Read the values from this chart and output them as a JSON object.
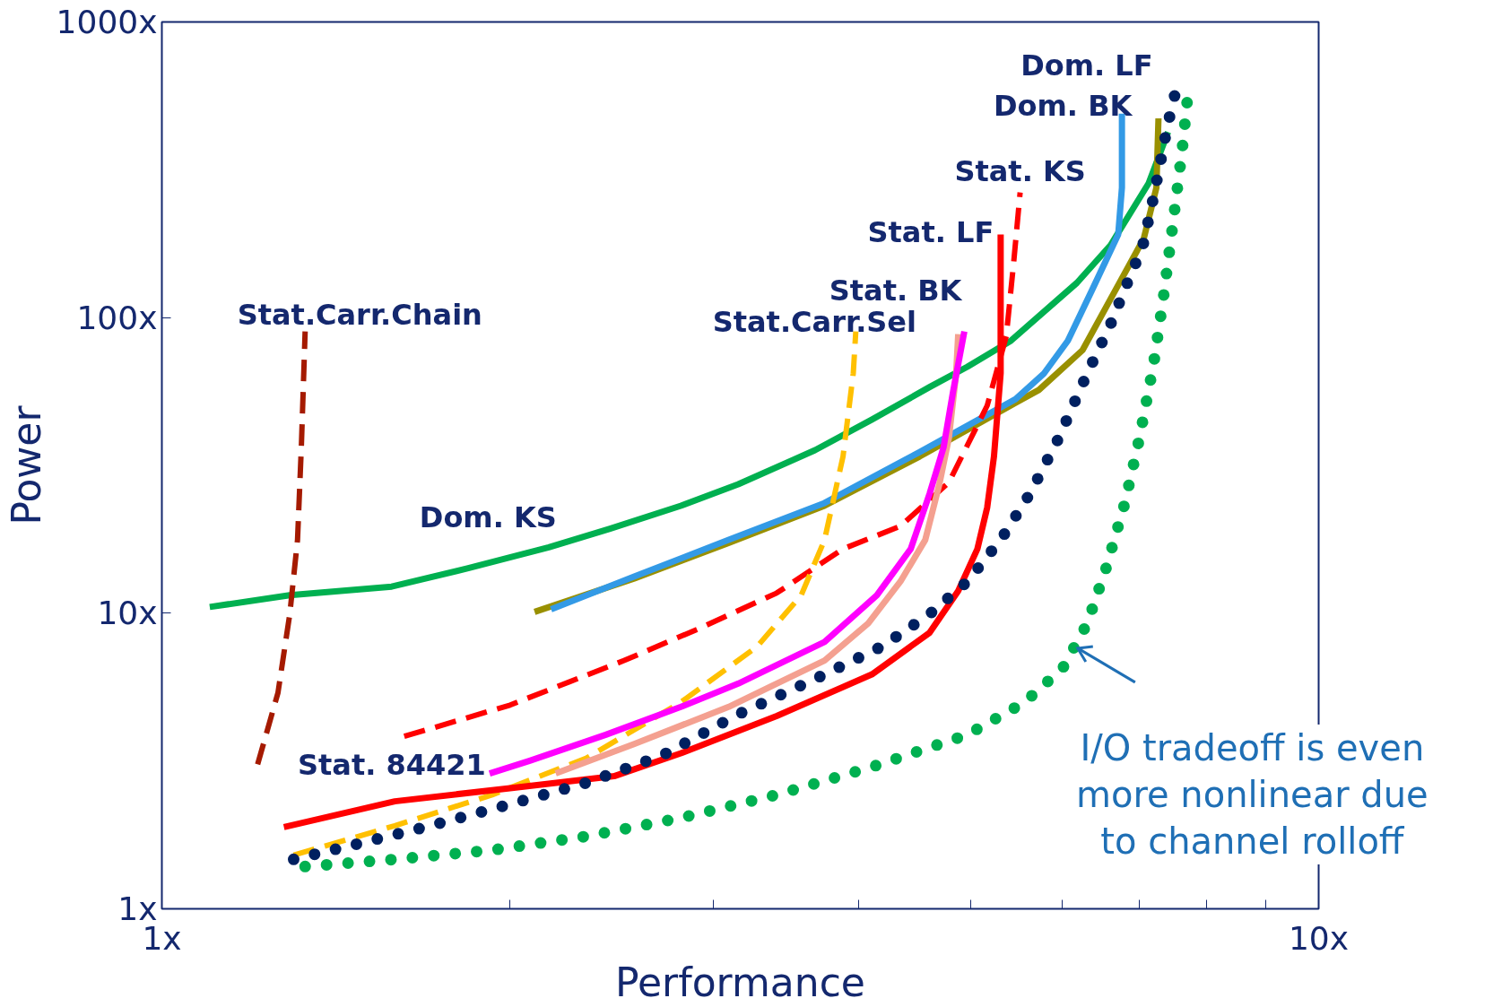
{
  "chart_data": {
    "type": "line",
    "xlabel": "Performance",
    "ylabel": "Power",
    "log": "xy",
    "grid": false,
    "xlim": [
      1,
      10
    ],
    "ylim": [
      1,
      1000
    ],
    "xticks": [
      {
        "value": 1,
        "label": "1x"
      },
      {
        "value": 2,
        "label": null
      },
      {
        "value": 3,
        "label": null
      },
      {
        "value": 4,
        "label": null
      },
      {
        "value": 5,
        "label": null
      },
      {
        "value": 6,
        "label": null
      },
      {
        "value": 7,
        "label": null
      },
      {
        "value": 8,
        "label": null
      },
      {
        "value": 9,
        "label": null
      },
      {
        "value": 10,
        "label": "10x"
      }
    ],
    "yticks": [
      {
        "value": 1,
        "label": "1x"
      },
      {
        "value": 10,
        "label": "10x"
      },
      {
        "value": 100,
        "label": "100x"
      },
      {
        "value": 1000,
        "label": "1000x"
      }
    ],
    "series": [
      {
        "name": "Dom. KS",
        "color": "#00b050",
        "line_style": "solid",
        "x": [
          1.1,
          1.29,
          1.58,
          1.84,
          2.16,
          2.44,
          2.81,
          3.15,
          3.67,
          4.11,
          4.61,
          4.97,
          5.42,
          6.18,
          6.61,
          7.13,
          7.41
        ],
        "values": [
          10.5,
          11.5,
          12.3,
          14.2,
          16.7,
          19.3,
          23.1,
          27.3,
          35.6,
          45.2,
          58.2,
          68.2,
          83.5,
          131,
          176,
          285,
          424
        ]
      },
      {
        "name": "Dom. LF",
        "color": "#999000",
        "line_style": "solid",
        "x": [
          2.1,
          2.56,
          3.09,
          3.74,
          4.52,
          5.47,
          5.73,
          6.25,
          6.74,
          7.06,
          7.24,
          7.27
        ],
        "values": [
          10.1,
          13.1,
          17.3,
          23.1,
          33.9,
          51.5,
          56.9,
          77.6,
          133,
          185,
          275,
          472
        ]
      },
      {
        "name": "Dom. BK",
        "color": "#339ae6",
        "line_style": "solid",
        "x": [
          2.17,
          2.56,
          3.09,
          3.74,
          4.52,
          5.47,
          5.79,
          6.07,
          6.37,
          6.71,
          6.76,
          6.76
        ],
        "values": [
          10.3,
          13.3,
          17.7,
          23.6,
          35.1,
          53.0,
          64.8,
          83.5,
          124,
          191,
          275,
          490
        ]
      },
      {
        "name": "Stat. KS",
        "color": "#ff0000",
        "line_style": "dashed",
        "x": [
          1.62,
          2.0,
          2.51,
          2.92,
          3.4,
          3.88,
          4.35,
          4.79,
          5.17,
          5.37,
          5.45,
          5.52
        ],
        "values": [
          3.83,
          4.89,
          6.92,
          8.91,
          11.7,
          16.5,
          19.7,
          27.7,
          50.4,
          86.5,
          154,
          265
        ]
      },
      {
        "name": "Stat.Carr.Sel",
        "color": "#ffc000",
        "line_style": "dashed",
        "x": [
          1.3,
          1.59,
          1.93,
          2.33,
          2.81,
          3.27,
          3.57,
          3.74,
          3.88,
          3.96,
          3.98
        ],
        "values": [
          1.52,
          1.91,
          2.43,
          3.24,
          5.0,
          7.71,
          11.5,
          17.7,
          33.9,
          64.8,
          89.8
        ]
      },
      {
        "name": "Stat.Carr.Chain",
        "color": "#a51a00",
        "line_style": "dashed",
        "x": [
          1.21,
          1.26,
          1.29,
          1.31,
          1.32,
          1.33
        ],
        "values": [
          3.08,
          5.38,
          9.93,
          17.7,
          36.4,
          89.8
        ]
      },
      {
        "name": "Stat. BK",
        "color": "#f4a090",
        "line_style": "solid",
        "x": [
          2.19,
          2.56,
          3.09,
          3.74,
          4.08,
          4.35,
          4.57,
          4.7,
          4.79,
          4.86,
          4.88
        ],
        "values": [
          2.87,
          3.61,
          4.82,
          6.92,
          9.24,
          12.8,
          17.7,
          27.3,
          39.1,
          64.8,
          87.9
        ]
      },
      {
        "name": "Stat. 84421",
        "color": "#ff00ff",
        "line_style": "solid",
        "x": [
          1.92,
          2.08,
          2.42,
          2.81,
          3.15,
          3.74,
          4.15,
          4.44,
          4.61,
          4.74,
          4.83,
          4.94
        ],
        "values": [
          2.87,
          3.17,
          3.88,
          4.82,
          5.78,
          7.99,
          11.5,
          16.5,
          25.4,
          36.4,
          56.1,
          89.8
        ]
      },
      {
        "name": "Stat. LF",
        "color": "#ff0000",
        "line_style": "solid",
        "x": [
          1.275,
          1.59,
          2.0,
          2.46,
          2.81,
          3.4,
          4.11,
          4.61,
          4.88,
          5.07,
          5.17,
          5.24,
          5.31,
          5.31
        ],
        "values": [
          1.89,
          2.31,
          2.56,
          2.81,
          3.36,
          4.49,
          6.21,
          8.59,
          11.9,
          16.5,
          22.8,
          33.9,
          64.8,
          191
        ]
      },
      {
        "color": "#002060",
        "line_style": "dotted",
        "x": [
          1.3,
          1.45,
          1.69,
          1.96,
          2.33,
          2.71,
          3.15,
          3.67,
          4.19,
          4.61,
          4.97,
          5.32,
          5.63,
          5.96,
          6.31,
          6.61,
          6.87,
          7.04,
          7.2,
          7.41,
          7.52
        ],
        "values": [
          1.47,
          1.63,
          1.89,
          2.21,
          2.67,
          3.31,
          4.55,
          5.99,
          7.71,
          9.93,
          12.8,
          17.9,
          25.4,
          39.1,
          64.8,
          95.1,
          138,
          172,
          256,
          455,
          578
        ]
      },
      {
        "color": "#00b050",
        "line_style": "dotted",
        "x": [
          1.33,
          1.59,
          1.93,
          2.33,
          2.81,
          3.4,
          4.11,
          4.97,
          5.57,
          6.01,
          6.15,
          6.31,
          6.55,
          6.8,
          7.0,
          7.2,
          7.34,
          7.48,
          7.62,
          7.7
        ],
        "values": [
          1.39,
          1.47,
          1.58,
          1.76,
          2.03,
          2.43,
          3.02,
          3.88,
          5.0,
          6.53,
          7.7,
          9.24,
          14.2,
          23.6,
          39.1,
          69.7,
          116,
          206,
          367,
          545
        ]
      }
    ],
    "annotations": [
      {
        "text": "I/O tradeoff is even\nmore nonlinear due\nto channel rolloff",
        "x": 6.15,
        "y": 7.7
      }
    ]
  }
}
